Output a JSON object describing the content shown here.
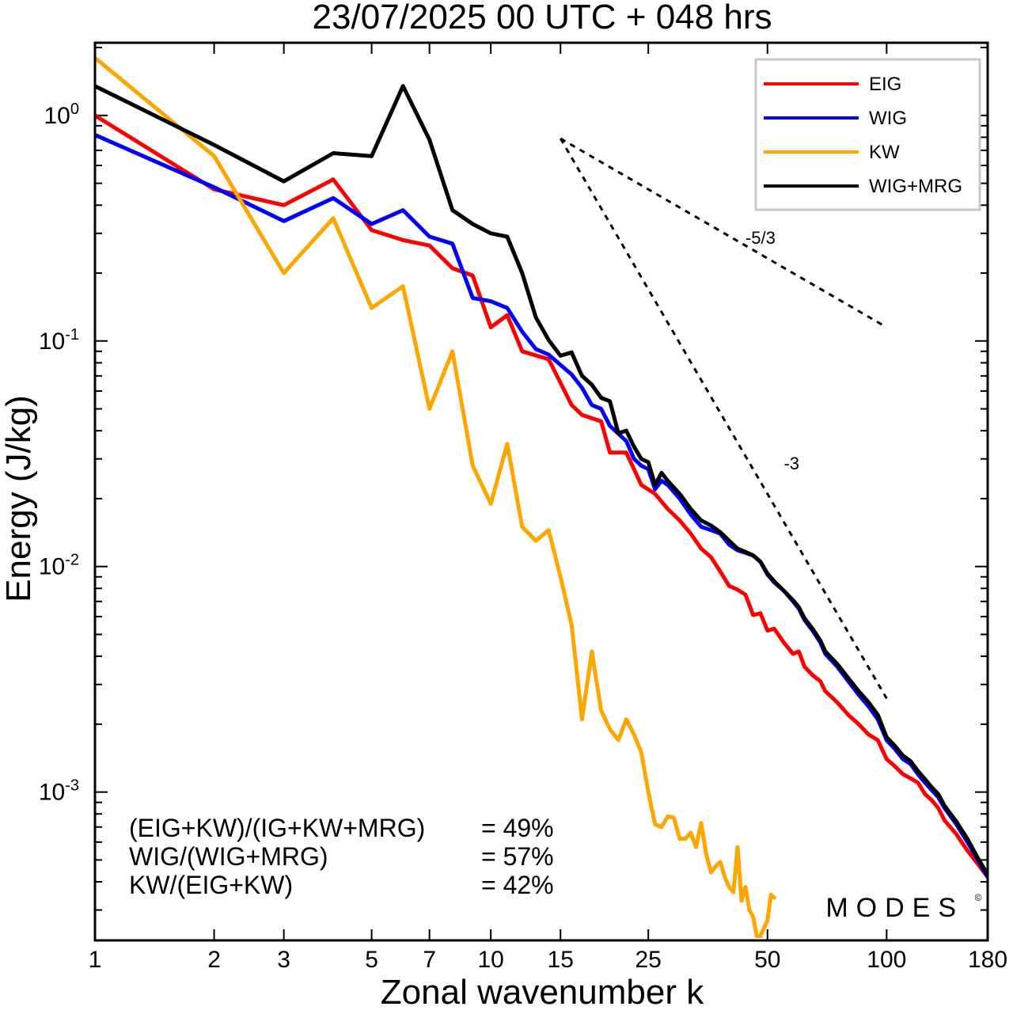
{
  "chart_data": {
    "type": "line",
    "title": "23/07/2025  00 UTC  + 048 hrs",
    "xlabel": "Zonal wavenumber k",
    "ylabel": "Energy (J/kg)",
    "xscale": "log",
    "yscale": "log",
    "xlim": [
      1,
      180
    ],
    "ylim": [
      0.00022,
      2.1
    ],
    "x_ticks": [
      1,
      2,
      3,
      5,
      7,
      10,
      15,
      25,
      50,
      100,
      180
    ],
    "x_tick_labels": [
      "1",
      "2",
      "3",
      "5",
      "7",
      "10",
      "15",
      "25",
      "50",
      "100",
      "180"
    ],
    "y_ticks": [
      {
        "value": 1,
        "base": "10",
        "exp": "0"
      },
      {
        "value": 0.1,
        "base": "10",
        "exp": "-1"
      },
      {
        "value": 0.01,
        "base": "10",
        "exp": "-2"
      },
      {
        "value": 0.001,
        "base": "10",
        "exp": "-3"
      }
    ],
    "legend": {
      "position": "top-right",
      "entries": [
        {
          "label": "EIG",
          "color": "#ff0000"
        },
        {
          "label": "WIG",
          "color": "#0000ff"
        },
        {
          "label": "KW",
          "color": "#ffa500"
        },
        {
          "label": "WIG+MRG",
          "color": "#000000"
        }
      ]
    },
    "series": [
      {
        "name": "EIG",
        "color": "#ff0000",
        "points": [
          [
            1,
            1.0
          ],
          [
            2,
            0.47
          ],
          [
            3,
            0.4
          ],
          [
            4,
            0.52
          ],
          [
            5,
            0.31
          ],
          [
            6,
            0.28
          ],
          [
            7,
            0.265
          ],
          [
            8,
            0.21
          ],
          [
            9,
            0.195
          ],
          [
            10,
            0.115
          ],
          [
            11,
            0.13
          ],
          [
            12,
            0.09
          ],
          [
            14,
            0.083
          ],
          [
            16,
            0.052
          ],
          [
            17,
            0.047
          ],
          [
            19,
            0.044
          ],
          [
            20,
            0.032
          ],
          [
            22,
            0.032
          ],
          [
            24,
            0.023
          ],
          [
            26,
            0.021
          ],
          [
            28,
            0.018
          ],
          [
            30,
            0.016
          ],
          [
            32,
            0.014
          ],
          [
            34,
            0.012
          ],
          [
            36,
            0.011
          ],
          [
            38,
            0.0095
          ],
          [
            40,
            0.0082
          ],
          [
            42,
            0.0079
          ],
          [
            44,
            0.0075
          ],
          [
            46,
            0.0061
          ],
          [
            48,
            0.0062
          ],
          [
            50,
            0.0052
          ],
          [
            52,
            0.0053
          ],
          [
            55,
            0.0046
          ],
          [
            58,
            0.0041
          ],
          [
            60,
            0.0042
          ],
          [
            62,
            0.0036
          ],
          [
            65,
            0.0033
          ],
          [
            68,
            0.0031
          ],
          [
            70,
            0.0028
          ],
          [
            75,
            0.0025
          ],
          [
            80,
            0.0022
          ],
          [
            85,
            0.002
          ],
          [
            90,
            0.0018
          ],
          [
            95,
            0.0017
          ],
          [
            100,
            0.0014
          ],
          [
            105,
            0.0013
          ],
          [
            110,
            0.0012
          ],
          [
            115,
            0.00115
          ],
          [
            120,
            0.0011
          ],
          [
            125,
            0.00098
          ],
          [
            130,
            0.00092
          ],
          [
            135,
            0.00085
          ],
          [
            140,
            0.00075
          ],
          [
            150,
            0.00065
          ],
          [
            160,
            0.00055
          ],
          [
            170,
            0.00048
          ],
          [
            180,
            0.00042
          ]
        ]
      },
      {
        "name": "WIG",
        "color": "#0000ff",
        "points": [
          [
            1,
            0.82
          ],
          [
            2,
            0.48
          ],
          [
            3,
            0.34
          ],
          [
            4,
            0.43
          ],
          [
            5,
            0.33
          ],
          [
            6,
            0.38
          ],
          [
            7,
            0.29
          ],
          [
            8,
            0.27
          ],
          [
            9,
            0.155
          ],
          [
            10,
            0.15
          ],
          [
            11,
            0.14
          ],
          [
            12,
            0.11
          ],
          [
            13,
            0.092
          ],
          [
            14,
            0.087
          ],
          [
            16,
            0.071
          ],
          [
            17,
            0.062
          ],
          [
            18,
            0.052
          ],
          [
            19,
            0.05
          ],
          [
            20,
            0.042
          ],
          [
            22,
            0.036
          ],
          [
            23,
            0.03
          ],
          [
            24,
            0.028
          ],
          [
            25,
            0.027
          ],
          [
            26,
            0.022
          ],
          [
            27,
            0.024
          ],
          [
            28,
            0.023
          ],
          [
            30,
            0.02
          ],
          [
            32,
            0.017
          ],
          [
            34,
            0.015
          ],
          [
            36,
            0.0145
          ],
          [
            38,
            0.014
          ],
          [
            40,
            0.0125
          ],
          [
            42,
            0.0118
          ],
          [
            44,
            0.0115
          ],
          [
            46,
            0.0112
          ],
          [
            48,
            0.0105
          ],
          [
            50,
            0.0092
          ],
          [
            52,
            0.0085
          ],
          [
            55,
            0.0078
          ],
          [
            58,
            0.007
          ],
          [
            60,
            0.0065
          ],
          [
            62,
            0.0058
          ],
          [
            65,
            0.0052
          ],
          [
            68,
            0.0046
          ],
          [
            70,
            0.0041
          ],
          [
            75,
            0.0036
          ],
          [
            80,
            0.0031
          ],
          [
            85,
            0.0027
          ],
          [
            90,
            0.0024
          ],
          [
            95,
            0.0021
          ],
          [
            100,
            0.0017
          ],
          [
            105,
            0.00155
          ],
          [
            110,
            0.0014
          ],
          [
            115,
            0.00133
          ],
          [
            120,
            0.0012
          ],
          [
            125,
            0.0011
          ],
          [
            130,
            0.00102
          ],
          [
            135,
            0.00095
          ],
          [
            140,
            0.00085
          ],
          [
            150,
            0.00072
          ],
          [
            160,
            0.0006
          ],
          [
            170,
            0.0005
          ],
          [
            180,
            0.00042
          ]
        ]
      },
      {
        "name": "KW",
        "color": "#ffa500",
        "points": [
          [
            1,
            1.8
          ],
          [
            2,
            0.66
          ],
          [
            3,
            0.2
          ],
          [
            4,
            0.35
          ],
          [
            5,
            0.14
          ],
          [
            6,
            0.175
          ],
          [
            7,
            0.05
          ],
          [
            8,
            0.09
          ],
          [
            9,
            0.028
          ],
          [
            10,
            0.019
          ],
          [
            11,
            0.035
          ],
          [
            12,
            0.015
          ],
          [
            13,
            0.013
          ],
          [
            14,
            0.0145
          ],
          [
            15,
            0.009
          ],
          [
            16,
            0.0055
          ],
          [
            17,
            0.0021
          ],
          [
            18,
            0.0042
          ],
          [
            19,
            0.0023
          ],
          [
            20,
            0.0019
          ],
          [
            21,
            0.0017
          ],
          [
            22,
            0.0021
          ],
          [
            23,
            0.0018
          ],
          [
            24,
            0.0015
          ],
          [
            25,
            0.001
          ],
          [
            26,
            0.00072
          ],
          [
            27,
            0.0007
          ],
          [
            28,
            0.00078
          ],
          [
            29,
            0.00077
          ],
          [
            30,
            0.00062
          ],
          [
            31,
            0.00062
          ],
          [
            32,
            0.00066
          ],
          [
            33,
            0.00057
          ],
          [
            34,
            0.00073
          ],
          [
            35,
            0.00053
          ],
          [
            36,
            0.00044
          ],
          [
            37,
            0.00047
          ],
          [
            38,
            0.00049
          ],
          [
            39,
            0.00042
          ],
          [
            40,
            0.00038
          ],
          [
            41,
            0.00036
          ],
          [
            42,
            0.00057
          ],
          [
            43,
            0.00033
          ],
          [
            44,
            0.00038
          ],
          [
            45,
            0.0003
          ],
          [
            46,
            0.00028
          ],
          [
            47,
            0.00023
          ],
          [
            48,
            0.00023
          ],
          [
            49,
            0.00025
          ],
          [
            50,
            0.00027
          ],
          [
            51,
            0.00035
          ],
          [
            52,
            0.00034
          ]
        ]
      },
      {
        "name": "WIG+MRG",
        "color": "#000000",
        "points": [
          [
            1,
            1.35
          ],
          [
            2,
            0.74
          ],
          [
            3,
            0.51
          ],
          [
            4,
            0.68
          ],
          [
            5,
            0.66
          ],
          [
            6,
            1.35
          ],
          [
            7,
            0.78
          ],
          [
            8,
            0.38
          ],
          [
            9,
            0.33
          ],
          [
            10,
            0.3
          ],
          [
            11,
            0.29
          ],
          [
            12,
            0.2
          ],
          [
            13,
            0.127
          ],
          [
            14,
            0.101
          ],
          [
            15,
            0.086
          ],
          [
            16,
            0.089
          ],
          [
            17,
            0.07
          ],
          [
            18,
            0.064
          ],
          [
            19,
            0.056
          ],
          [
            20,
            0.054
          ],
          [
            21,
            0.039
          ],
          [
            22,
            0.04
          ],
          [
            23,
            0.034
          ],
          [
            24,
            0.03
          ],
          [
            25,
            0.029
          ],
          [
            26,
            0.023
          ],
          [
            27,
            0.026
          ],
          [
            28,
            0.024
          ],
          [
            30,
            0.021
          ],
          [
            32,
            0.018
          ],
          [
            34,
            0.016
          ],
          [
            36,
            0.0152
          ],
          [
            38,
            0.0142
          ],
          [
            40,
            0.013
          ],
          [
            42,
            0.012
          ],
          [
            44,
            0.0116
          ],
          [
            46,
            0.0112
          ],
          [
            48,
            0.0105
          ],
          [
            50,
            0.0093
          ],
          [
            52,
            0.0086
          ],
          [
            55,
            0.0078
          ],
          [
            58,
            0.0071
          ],
          [
            60,
            0.0066
          ],
          [
            62,
            0.0059
          ],
          [
            65,
            0.0053
          ],
          [
            68,
            0.0047
          ],
          [
            70,
            0.0042
          ],
          [
            75,
            0.0037
          ],
          [
            80,
            0.0032
          ],
          [
            85,
            0.0028
          ],
          [
            90,
            0.0025
          ],
          [
            95,
            0.0022
          ],
          [
            100,
            0.00175
          ],
          [
            105,
            0.0016
          ],
          [
            110,
            0.00145
          ],
          [
            115,
            0.00137
          ],
          [
            120,
            0.00124
          ],
          [
            125,
            0.00114
          ],
          [
            130,
            0.00105
          ],
          [
            135,
            0.00098
          ],
          [
            140,
            0.00087
          ],
          [
            150,
            0.00074
          ],
          [
            160,
            0.00062
          ],
          [
            170,
            0.00051
          ],
          [
            180,
            0.00043
          ]
        ]
      }
    ],
    "reference_lines": [
      {
        "label": "-5/3",
        "slope": "-5/3",
        "from": [
          15,
          0.79
        ],
        "to": [
          100,
          0.115
        ],
        "label_at": [
          44,
          0.27
        ]
      },
      {
        "label": "-3",
        "slope": "-3",
        "from": [
          15,
          0.79
        ],
        "to": [
          100,
          0.0026
        ],
        "label_at": [
          55,
          0.027
        ]
      }
    ],
    "annotations": [
      {
        "label": "(EIG+KW)/(IG+KW+MRG)",
        "value": "= 49%"
      },
      {
        "label": "WIG/(WIG+MRG)",
        "value": "= 57%"
      },
      {
        "label": "KW/(EIG+KW)",
        "value": "= 42%"
      }
    ],
    "watermark": "MODES"
  }
}
